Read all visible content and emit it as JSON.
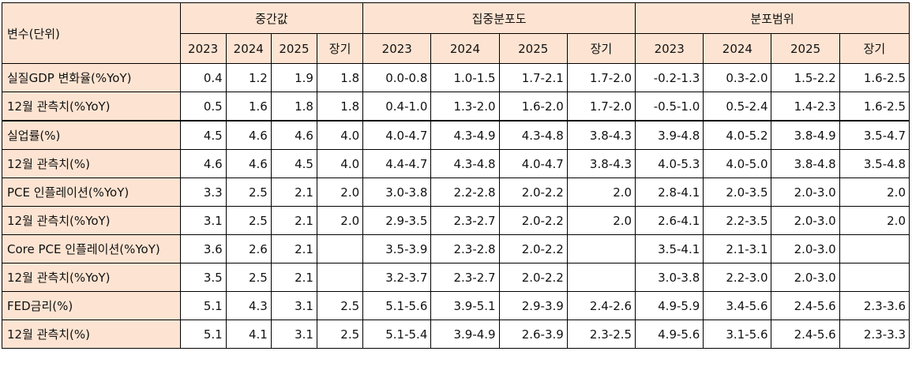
{
  "header": {
    "variable_col": "변수(단위)",
    "groups": [
      "중간값",
      "집중분포도",
      "분포범위"
    ],
    "years": [
      "2023",
      "2024",
      "2025",
      "장기"
    ]
  },
  "rows": [
    {
      "label": "실질GDP 변화율(%YoY)",
      "median": [
        "0.4",
        "1.2",
        "1.9",
        "1.8"
      ],
      "central": [
        "0.0-0.8",
        "1.0-1.5",
        "1.7-2.1",
        "1.7-2.0"
      ],
      "range": [
        "-0.2-1.3",
        "0.3-2.0",
        "1.5-2.2",
        "1.6-2.5"
      ]
    },
    {
      "label": "12월 관측치(%YoY)",
      "median": [
        "0.5",
        "1.6",
        "1.8",
        "1.8"
      ],
      "central": [
        "0.4-1.0",
        "1.3-2.0",
        "1.6-2.0",
        "1.7-2.0"
      ],
      "range": [
        "-0.5-1.0",
        "0.5-2.4",
        "1.4-2.3",
        "1.6-2.5"
      ]
    },
    {
      "label": "실업률(%)",
      "median": [
        "4.5",
        "4.6",
        "4.6",
        "4.0"
      ],
      "central": [
        "4.0-4.7",
        "4.3-4.9",
        "4.3-4.8",
        "3.8-4.3"
      ],
      "range": [
        "3.9-4.8",
        "4.0-5.2",
        "3.8-4.9",
        "3.5-4.7"
      ]
    },
    {
      "label": "12월 관측치(%)",
      "median": [
        "4.6",
        "4.6",
        "4.5",
        "4.0"
      ],
      "central": [
        "4.4-4.7",
        "4.3-4.8",
        "4.0-4.7",
        "3.8-4.3"
      ],
      "range": [
        "4.0-5.3",
        "4.0-5.0",
        "3.8-4.8",
        "3.5-4.8"
      ]
    },
    {
      "label": "PCE 인플레이션(%YoY)",
      "median": [
        "3.3",
        "2.5",
        "2.1",
        "2.0"
      ],
      "central": [
        "3.0-3.8",
        "2.2-2.8",
        "2.0-2.2",
        "2.0"
      ],
      "range": [
        "2.8-4.1",
        "2.0-3.5",
        "2.0-3.0",
        "2.0"
      ]
    },
    {
      "label": "12월 관측치(%YoY)",
      "median": [
        "3.1",
        "2.5",
        "2.1",
        "2.0"
      ],
      "central": [
        "2.9-3.5",
        "2.3-2.7",
        "2.0-2.2",
        "2.0"
      ],
      "range": [
        "2.6-4.1",
        "2.2-3.5",
        "2.0-3.0",
        "2.0"
      ]
    },
    {
      "label": "Core PCE 인플레이션(%YoY)",
      "median": [
        "3.6",
        "2.6",
        "2.1",
        ""
      ],
      "central": [
        "3.5-3.9",
        "2.3-2.8",
        "2.0-2.2",
        ""
      ],
      "range": [
        "3.5-4.1",
        "2.1-3.1",
        "2.0-3.0",
        ""
      ]
    },
    {
      "label": "12월 관측치(%YoY)",
      "median": [
        "3.5",
        "2.5",
        "2.1",
        ""
      ],
      "central": [
        "3.2-3.7",
        "2.3-2.7",
        "2.0-2.2",
        ""
      ],
      "range": [
        "3.0-3.8",
        "2.2-3.0",
        "2.0-3.0",
        ""
      ]
    },
    {
      "label": "FED금리(%)",
      "median": [
        "5.1",
        "4.3",
        "3.1",
        "2.5"
      ],
      "central": [
        "5.1-5.6",
        "3.9-5.1",
        "2.9-3.9",
        "2.4-2.6"
      ],
      "range": [
        "4.9-5.9",
        "3.4-5.6",
        "2.4-5.6",
        "2.3-3.6"
      ]
    },
    {
      "label": "12월 관측치(%)",
      "median": [
        "5.1",
        "4.1",
        "3.1",
        "2.5"
      ],
      "central": [
        "5.1-5.4",
        "3.9-4.9",
        "2.6-3.9",
        "2.3-2.5"
      ],
      "range": [
        "4.9-5.6",
        "3.1-5.6",
        "2.4-5.6",
        "2.3-3.3"
      ]
    }
  ]
}
